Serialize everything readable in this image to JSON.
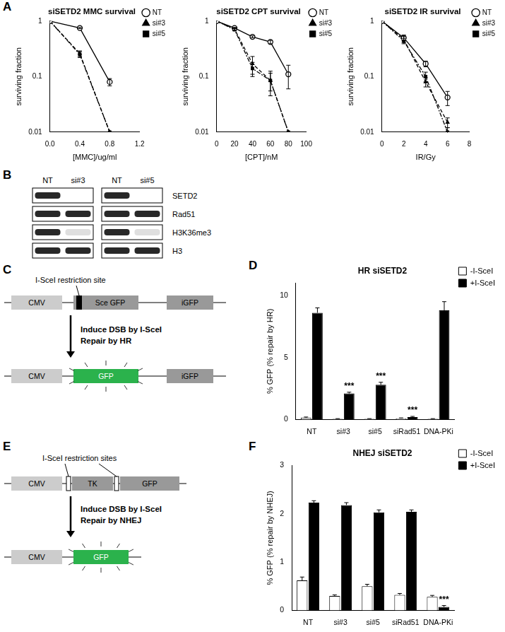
{
  "panel_labels": [
    "A",
    "B",
    "C",
    "D",
    "E",
    "F"
  ],
  "chart_data": [
    {
      "type": "line",
      "title": "siSETD2 MMC survival",
      "x_label": "[MMC]/ug/ml",
      "y_label": "surviving fraction",
      "log": "y",
      "grid": false,
      "legend": "top-right",
      "xlim": [
        0,
        1.2
      ],
      "xticks": [
        {
          "value": 0,
          "label": "0.0"
        },
        0.4,
        0.8,
        1.2
      ],
      "ylim": [
        0.01,
        1
      ],
      "yticks": [
        0.01,
        0.1,
        1
      ],
      "x": [
        0,
        0.4,
        0.8
      ],
      "series": [
        {
          "name": "NT",
          "color": "#000000",
          "marker": "open_circle",
          "line_style": "solid",
          "values": [
            1,
            0.75,
            0.08
          ],
          "errors": [
            0,
            0.02,
            0.012
          ]
        },
        {
          "name": "si#3",
          "color": "#000000",
          "marker": "triangle",
          "line_style": "dashed",
          "values": [
            1,
            0.26,
            0.01
          ],
          "errors": [
            0,
            0.03,
            0
          ]
        },
        {
          "name": "si#5",
          "color": "#000000",
          "marker": "square",
          "line_style": "dashdot",
          "values": [
            1,
            0.25,
            0.01
          ],
          "errors": [
            0,
            0.03,
            0
          ]
        }
      ]
    },
    {
      "type": "line",
      "title": "siSETD2 CPT survival",
      "x_label": "[CPT]/nM",
      "y_label": "surviving fraction",
      "log": "y",
      "grid": false,
      "legend": "top-right",
      "xlim": [
        0,
        100
      ],
      "xticks": [
        0,
        20,
        40,
        60,
        80,
        100
      ],
      "ylim": [
        0.01,
        1
      ],
      "yticks": [
        0.01,
        0.1,
        1
      ],
      "x": [
        0,
        20,
        40,
        60,
        80
      ],
      "series": [
        {
          "name": "NT",
          "color": "#000000",
          "marker": "open_circle",
          "line_style": "solid",
          "values": [
            1,
            0.75,
            0.52,
            0.42,
            0.11
          ],
          "errors": [
            0,
            0.02,
            0.02,
            0.03,
            0.05
          ]
        },
        {
          "name": "si#3",
          "color": "#000000",
          "marker": "triangle",
          "line_style": "dashed",
          "values": [
            1,
            0.72,
            0.17,
            0.085,
            0.01
          ],
          "errors": [
            0,
            0.03,
            0.06,
            0.04,
            0
          ]
        },
        {
          "name": "si#5",
          "color": "#000000",
          "marker": "square",
          "line_style": "dashdot",
          "values": [
            1,
            0.7,
            0.14,
            0.085,
            0.01
          ],
          "errors": [
            0,
            0.03,
            0.04,
            0.03,
            0
          ]
        }
      ]
    },
    {
      "type": "line",
      "title": "siSETD2 IR survival",
      "x_label": "IR/Gy",
      "y_label": "surviving fraction",
      "log": "y",
      "grid": false,
      "legend": "top-right",
      "xlim": [
        0,
        8
      ],
      "xticks": [
        0,
        2,
        4,
        6,
        8
      ],
      "ylim": [
        0.01,
        1
      ],
      "yticks": [
        0.01,
        0.1,
        1
      ],
      "x": [
        0,
        2,
        4,
        6
      ],
      "series": [
        {
          "name": "NT",
          "color": "#000000",
          "marker": "open_circle",
          "line_style": "solid",
          "values": [
            1,
            0.5,
            0.17,
            0.042
          ],
          "errors": [
            0,
            0.06,
            0.02,
            0.012
          ]
        },
        {
          "name": "si#3",
          "color": "#000000",
          "marker": "triangle",
          "line_style": "dashed",
          "values": [
            1,
            0.47,
            0.08,
            0.015
          ],
          "errors": [
            0,
            0.06,
            0.015,
            0.003
          ]
        },
        {
          "name": "si#5",
          "color": "#000000",
          "marker": "square",
          "line_style": "dashdot",
          "values": [
            1,
            0.44,
            0.1,
            0.01
          ],
          "errors": [
            0,
            0.05,
            0.02,
            0.002
          ]
        }
      ]
    },
    {
      "type": "bar",
      "title": "HR siSETD2",
      "y_label": "% GFP (% repair by HR)",
      "grid": false,
      "legend": "top-right",
      "categories": [
        "NT",
        "si#3",
        "si#5",
        "siRad51",
        "DNA-PKi"
      ],
      "ylim": [
        0,
        11
      ],
      "yticks": [
        0,
        5,
        10
      ],
      "series": [
        {
          "name": "-I-SceI",
          "color": "#ffffff",
          "values": [
            0.15,
            0.05,
            0.05,
            0.1,
            0.05
          ],
          "errors": [
            0.05,
            0.02,
            0.02,
            0.03,
            0.02
          ]
        },
        {
          "name": "+I-SceI",
          "color": "#000000",
          "values": [
            8.6,
            2.1,
            2.8,
            0.2,
            8.8
          ],
          "errors": [
            0.4,
            0.1,
            0.2,
            0.05,
            0.7
          ]
        }
      ],
      "annotations": [
        {
          "text": "***",
          "category": "si#3",
          "series": "+I-SceI"
        },
        {
          "text": "***",
          "category": "si#5",
          "series": "+I-SceI"
        },
        {
          "text": "***",
          "category": "siRad51",
          "series": "+I-SceI"
        }
      ]
    },
    {
      "type": "bar",
      "title": "NHEJ siSETD2",
      "y_label": "% GFP (% repair by NHEJ)",
      "grid": false,
      "legend": "top-right",
      "categories": [
        "NT",
        "si#3",
        "si#5",
        "siRad51",
        "DNA-PKi"
      ],
      "ylim": [
        0,
        3
      ],
      "yticks": [
        0,
        1,
        2,
        3
      ],
      "series": [
        {
          "name": "-I-SceI",
          "color": "#ffffff",
          "values": [
            0.62,
            0.3,
            0.5,
            0.32,
            0.28
          ],
          "errors": [
            0.07,
            0.02,
            0.04,
            0.03,
            0.03
          ]
        },
        {
          "name": "+I-SceI",
          "color": "#000000",
          "values": [
            2.23,
            2.18,
            2.03,
            2.04,
            0.07
          ],
          "errors": [
            0.04,
            0.05,
            0.05,
            0.04,
            0.03
          ]
        }
      ],
      "annotations": [
        {
          "text": "***",
          "category": "DNA-PKi",
          "series": "+I-SceI"
        }
      ]
    }
  ],
  "blot": {
    "lane_groups": [
      [
        "NT",
        "si#3"
      ],
      [
        "NT",
        "si#5"
      ]
    ],
    "rows": [
      {
        "name": "SETD2",
        "signal": [
          1,
          0,
          1,
          0
        ]
      },
      {
        "name": "Rad51",
        "signal": [
          1,
          1,
          1,
          1
        ]
      },
      {
        "name": "H3K36me3",
        "signal": [
          1,
          0.15,
          1,
          0.15
        ]
      },
      {
        "name": "H3",
        "signal": [
          1,
          1,
          1,
          1
        ]
      }
    ]
  },
  "diagrams": {
    "C": {
      "site_label": "I-SceI restriction site",
      "before": [
        "CMV",
        "Sce GFP",
        "iGFP"
      ],
      "step": [
        "Induce DSB by I-SceI",
        "Repair by HR"
      ],
      "after": [
        "CMV",
        "GFP",
        "iGFP"
      ]
    },
    "E": {
      "site_label": "I-SceI restriction sites",
      "before": [
        "CMV",
        "TK",
        "GFP"
      ],
      "step": [
        "Induce DSB by I-SceI",
        "Repair by NHEJ"
      ],
      "after": [
        "CMV",
        "GFP"
      ]
    }
  }
}
